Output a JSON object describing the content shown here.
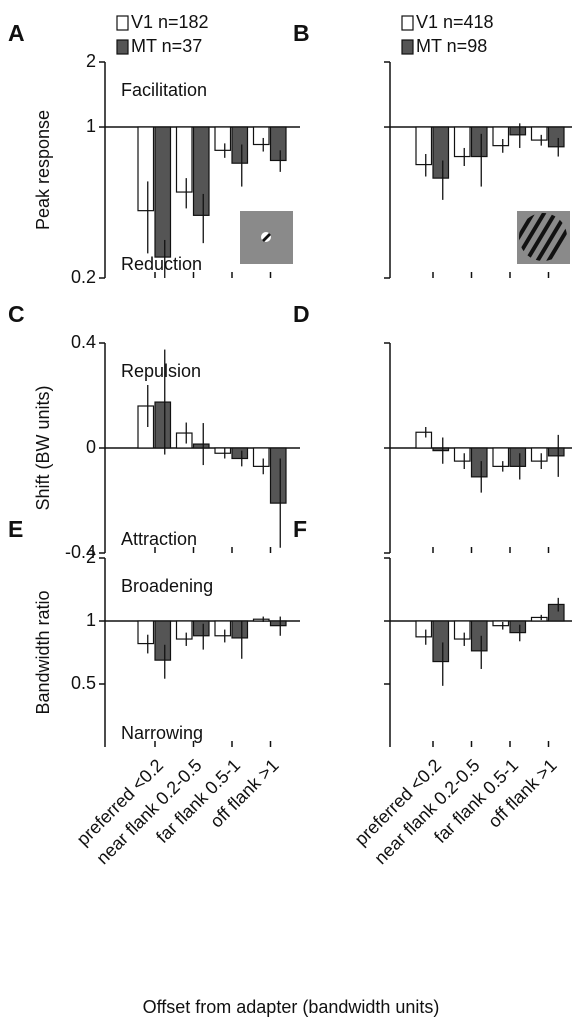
{
  "xlabel": "Offset from adapter (bandwidth units)",
  "chart_data": [
    {
      "type": "bar",
      "panel": "A",
      "log_scale": true,
      "ylabel": "Peak response",
      "ylim": [
        0.2,
        2
      ],
      "yticks": [
        2,
        1,
        0.2
      ],
      "show_tick_labels": true,
      "annotations": [
        "Facilitation",
        "Reduction"
      ],
      "series": [
        {
          "name": "V1 n=182",
          "color": "#ffffff",
          "values": [
            0.41,
            0.5,
            0.78,
            0.83
          ],
          "errors": [
            0.15,
            0.08,
            0.06,
            0.06
          ]
        },
        {
          "name": "MT n=37",
          "color": "#555555",
          "values": [
            0.25,
            0.39,
            0.68,
            0.7
          ],
          "errors": [
            0.05,
            0.1,
            0.15,
            0.08
          ]
        }
      ]
    },
    {
      "type": "bar",
      "panel": "B",
      "log_scale": true,
      "ylim": [
        0.2,
        2
      ],
      "yticks": [
        2,
        1,
        0.2
      ],
      "show_tick_labels": false,
      "series": [
        {
          "name": "V1 n=418",
          "color": "#ffffff",
          "values": [
            0.67,
            0.73,
            0.82,
            0.87
          ],
          "errors": [
            0.08,
            0.07,
            0.06,
            0.05
          ]
        },
        {
          "name": "MT n=98",
          "color": "#555555",
          "values": [
            0.58,
            0.73,
            0.92,
            0.81
          ],
          "errors": [
            0.12,
            0.2,
            0.12,
            0.08
          ]
        }
      ]
    },
    {
      "type": "bar",
      "panel": "C",
      "log_scale": false,
      "ylabel": "Shift (BW units)",
      "ylim": [
        -0.4,
        0.4
      ],
      "yticks": [
        0.4,
        0,
        -0.4
      ],
      "show_tick_labels": true,
      "annotations": [
        "Repulsion",
        "Attraction"
      ],
      "series": [
        {
          "color": "#ffffff",
          "values": [
            0.16,
            0.057,
            -0.02,
            -0.07
          ],
          "errors": [
            0.08,
            0.04,
            0.02,
            0.03
          ]
        },
        {
          "color": "#555555",
          "values": [
            0.175,
            0.015,
            -0.04,
            -0.21
          ],
          "errors": [
            0.2,
            0.08,
            0.03,
            0.17
          ]
        }
      ]
    },
    {
      "type": "bar",
      "panel": "D",
      "log_scale": false,
      "ylim": [
        -0.4,
        0.4
      ],
      "yticks": [
        0.4,
        0,
        -0.4
      ],
      "show_tick_labels": false,
      "series": [
        {
          "color": "#ffffff",
          "values": [
            0.06,
            -0.05,
            -0.07,
            -0.05
          ],
          "errors": [
            0.02,
            0.03,
            0.02,
            0.03
          ]
        },
        {
          "color": "#555555",
          "values": [
            -0.01,
            -0.11,
            -0.07,
            -0.03
          ],
          "errors": [
            0.05,
            0.06,
            0.05,
            0.08
          ]
        }
      ]
    },
    {
      "type": "bar",
      "panel": "E",
      "log_scale": true,
      "ylabel": "Bandwidth ratio",
      "ylim": [
        0.25,
        2
      ],
      "yticks": [
        2,
        1,
        0.5
      ],
      "show_tick_labels": true,
      "annotations": [
        "Broadening",
        "Narrowing"
      ],
      "categories": [
        "preferred <0.2",
        "near flank 0.2-0.5",
        "far flank 0.5-1",
        "off flank >1"
      ],
      "series": [
        {
          "color": "#ffffff",
          "values": [
            0.78,
            0.82,
            0.85,
            1.02
          ],
          "errors": [
            0.08,
            0.06,
            0.06,
            0.03
          ]
        },
        {
          "color": "#555555",
          "values": [
            0.65,
            0.85,
            0.83,
            0.95
          ],
          "errors": [
            0.12,
            0.12,
            0.17,
            0.1
          ]
        }
      ]
    },
    {
      "type": "bar",
      "panel": "F",
      "log_scale": true,
      "ylim": [
        0.25,
        2
      ],
      "yticks": [
        2,
        1,
        0.5
      ],
      "show_tick_labels": false,
      "categories": [
        "preferred <0.2",
        "near flank 0.2-0.5",
        "far flank 0.5-1",
        "off flank >1"
      ],
      "series": [
        {
          "color": "#ffffff",
          "values": [
            0.84,
            0.82,
            0.95,
            1.04
          ],
          "errors": [
            0.07,
            0.06,
            0.04,
            0.03
          ]
        },
        {
          "color": "#555555",
          "values": [
            0.64,
            0.72,
            0.88,
            1.2
          ],
          "errors": [
            0.15,
            0.13,
            0.08,
            0.09
          ]
        }
      ]
    }
  ]
}
